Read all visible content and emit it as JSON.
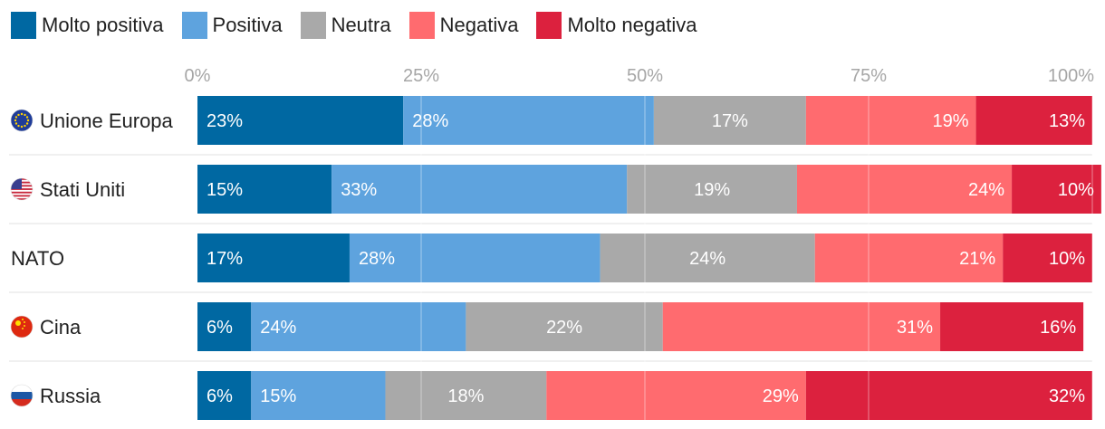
{
  "chart_data": {
    "type": "bar",
    "orientation": "horizontal",
    "stacked": true,
    "xlim": [
      0,
      100
    ],
    "ticks": [
      "0%",
      "25%",
      "50%",
      "75%",
      "100%"
    ],
    "legend_position": "top-left",
    "series": [
      {
        "name": "Molto positiva",
        "color": "#0068a2"
      },
      {
        "name": "Positiva",
        "color": "#5ea3de"
      },
      {
        "name": "Neutra",
        "color": "#a9a9a9"
      },
      {
        "name": "Negativa",
        "color": "#ff6b6f"
      },
      {
        "name": "Molto negativa",
        "color": "#dc213e"
      }
    ],
    "rows": [
      {
        "label": "Unione Europa",
        "flag": "eu-flag-icon",
        "values": [
          23,
          28,
          17,
          19,
          13
        ],
        "value_labels": [
          "23%",
          "28%",
          "17%",
          "19%",
          "13%"
        ]
      },
      {
        "label": "Stati Uniti",
        "flag": "us-flag-icon",
        "values": [
          15,
          33,
          19,
          24,
          10
        ],
        "value_labels": [
          "15%",
          "33%",
          "19%",
          "24%",
          "10%"
        ]
      },
      {
        "label": "NATO",
        "flag": "",
        "values": [
          17,
          28,
          24,
          21,
          10
        ],
        "value_labels": [
          "17%",
          "28%",
          "24%",
          "21%",
          "10%"
        ]
      },
      {
        "label": "Cina",
        "flag": "china-flag-icon",
        "values": [
          6,
          24,
          22,
          31,
          16
        ],
        "value_labels": [
          "6%",
          "24%",
          "22%",
          "31%",
          "16%"
        ]
      },
      {
        "label": "Russia",
        "flag": "russia-flag-icon",
        "values": [
          6,
          15,
          18,
          29,
          32
        ],
        "value_labels": [
          "6%",
          "15%",
          "18%",
          "29%",
          "32%"
        ]
      }
    ]
  }
}
